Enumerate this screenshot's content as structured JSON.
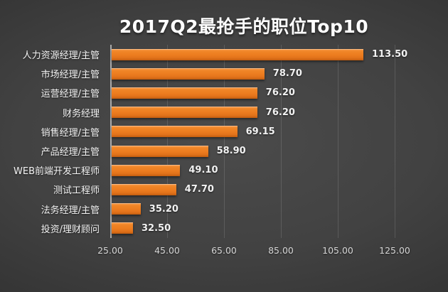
{
  "title": "2017Q2最抢手的职位Top10",
  "colors": {
    "background_center": "#4B4B4B",
    "background_edge": "#222222",
    "bar": "#EC7C1F",
    "bar_highlight": "#F89A48",
    "bar_shade": "#C25D0F",
    "text": "#F2F2F2",
    "tick_text": "#D6D6D6",
    "gridline": "rgba(255,255,255,0.13)",
    "axis_line": "rgba(255,255,255,0.55)"
  },
  "chart_data": {
    "type": "bar",
    "orientation": "horizontal",
    "title": "2017Q2最抢手的职位Top10",
    "categories": [
      "人力资源经理/主管",
      "市场经理/主管",
      "运营经理/主管",
      "财务经理",
      "销售经理/主管",
      "产品经理/主管",
      "WEB前端开发工程师",
      "测试工程师",
      "法务经理/主管",
      "投资/理财顾问"
    ],
    "values": [
      113.5,
      78.7,
      76.2,
      76.2,
      69.15,
      58.9,
      49.1,
      47.7,
      35.2,
      32.5
    ],
    "value_labels": [
      "113.50",
      "78.70",
      "76.20",
      "76.20",
      "69.15",
      "58.90",
      "49.10",
      "47.70",
      "35.20",
      "32.50"
    ],
    "x_ticks": [
      25.0,
      45.0,
      65.0,
      85.0,
      105.0,
      125.0
    ],
    "x_tick_labels": [
      "25.00",
      "45.00",
      "65.00",
      "85.00",
      "105.00",
      "125.00"
    ],
    "xlim": [
      25,
      131
    ],
    "grid": "vertical",
    "legend": "none",
    "data_labels": "outside-end"
  }
}
